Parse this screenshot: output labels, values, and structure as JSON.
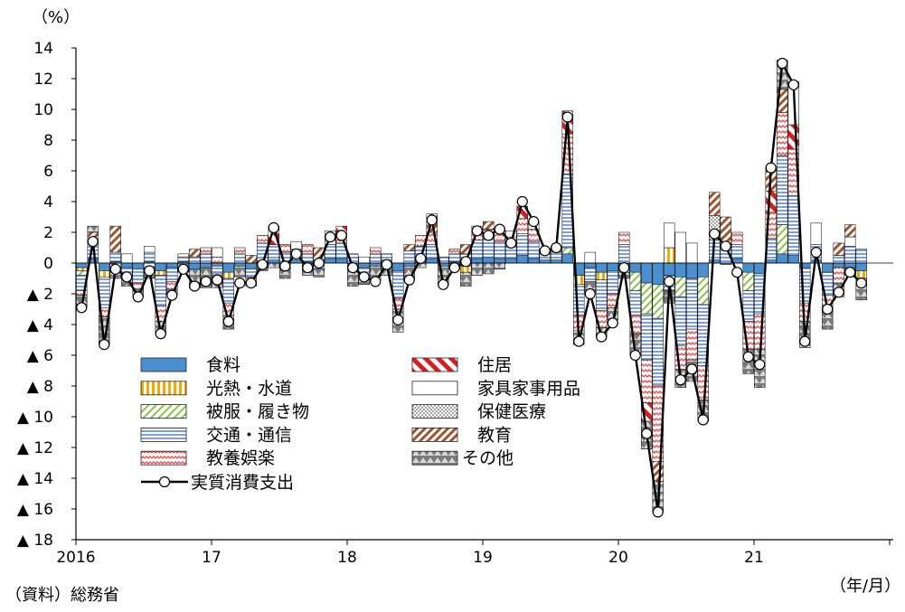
{
  "chart_data": {
    "type": "bar",
    "subtype": "stacked-bar-with-line",
    "y_unit": "（%）",
    "x_unit": "（年/月）",
    "source": "（資料）総務省",
    "ylim": [
      -18,
      14
    ],
    "y_ticks": [
      {
        "v": 14,
        "label": "14"
      },
      {
        "v": 12,
        "label": "12"
      },
      {
        "v": 10,
        "label": "10"
      },
      {
        "v": 8,
        "label": "8"
      },
      {
        "v": 6,
        "label": "6"
      },
      {
        "v": 4,
        "label": "4"
      },
      {
        "v": 2,
        "label": "2"
      },
      {
        "v": 0,
        "label": "0"
      },
      {
        "v": -2,
        "label": "▲ 2"
      },
      {
        "v": -4,
        "label": "▲ 4"
      },
      {
        "v": -6,
        "label": "▲ 6"
      },
      {
        "v": -8,
        "label": "▲ 8"
      },
      {
        "v": -10,
        "label": "▲ 10"
      },
      {
        "v": -12,
        "label": "▲ 12"
      },
      {
        "v": -14,
        "label": "▲ 14"
      },
      {
        "v": -16,
        "label": "▲ 16"
      },
      {
        "v": -18,
        "label": "▲ 18"
      }
    ],
    "x_ticks": [
      {
        "index": 0,
        "label": "2016"
      },
      {
        "index": 12,
        "label": "17"
      },
      {
        "index": 24,
        "label": "18"
      },
      {
        "index": 36,
        "label": "19"
      },
      {
        "index": 48,
        "label": "20"
      },
      {
        "index": 60,
        "label": "21"
      }
    ],
    "months_count": 71,
    "grid": false,
    "legend_position": "bottom-left",
    "series": [
      {
        "name": "食料",
        "pattern": "food",
        "color": "#4a90d0"
      },
      {
        "name": "住居",
        "pattern": "housing",
        "color": "#d62020"
      },
      {
        "name": "光熱・水道",
        "pattern": "utility",
        "color": "#f2a900"
      },
      {
        "name": "家具家事用品",
        "pattern": "furniture",
        "color": "#ffffff"
      },
      {
        "name": "被服・履き物",
        "pattern": "clothing",
        "color": "#9ccc65"
      },
      {
        "name": "保健医療",
        "pattern": "health",
        "color": "#999999"
      },
      {
        "name": "交通・通信",
        "pattern": "transport",
        "color": "#6f8fc8"
      },
      {
        "name": "教育",
        "pattern": "education",
        "color": "#a0522d"
      },
      {
        "name": "教養娯楽",
        "pattern": "recreation",
        "color": "#f05050"
      },
      {
        "name": "その他",
        "pattern": "other",
        "color": "#7a7a7a"
      }
    ],
    "line_series": {
      "name": "実質消費支出",
      "values": [
        -2.9,
        1.4,
        -5.3,
        -0.4,
        -0.9,
        -2.2,
        -0.5,
        -4.6,
        -2.1,
        -0.4,
        -1.5,
        -1.2,
        -1.1,
        -3.8,
        -1.3,
        -1.3,
        -0.1,
        2.3,
        -0.2,
        0.6,
        -0.3,
        0.0,
        1.7,
        1.8,
        -0.3,
        -0.9,
        -1.2,
        -0.1,
        -3.7,
        -1.1,
        0.3,
        2.8,
        -1.4,
        -0.3,
        0.1,
        2.1,
        1.8,
        2.2,
        1.3,
        4.0,
        2.7,
        0.8,
        1.0,
        9.5,
        -5.1,
        -2.0,
        -4.8,
        -3.9,
        -0.3,
        -6.0,
        -11.1,
        -16.2,
        -1.2,
        -7.6,
        -6.9,
        -10.2,
        1.9,
        1.1,
        -0.6,
        -6.1,
        -6.6,
        6.2,
        13.0,
        11.6,
        -5.1,
        0.7,
        -3.0,
        -1.9,
        -0.6,
        -1.3,
        null
      ]
    },
    "stack_values": [
      {
        "food": -0.3,
        "utility": -0.2,
        "clothing": -0.3,
        "transport": -1.0,
        "recreation": -0.3,
        "other": -0.8
      },
      {
        "food": 0.3,
        "transport": 0.9,
        "recreation": 0.2,
        "other": 0.4,
        "education": 0.6
      },
      {
        "food": -0.5,
        "utility": -0.4,
        "transport": -2.0,
        "recreation": -0.6,
        "other": -1.8
      },
      {
        "food": 0.1,
        "transport": 0.6,
        "housing": -0.6,
        "education": 1.7,
        "other": -0.4
      },
      {
        "food": -0.3,
        "transport": -0.5,
        "furniture": 0.6,
        "other": -0.7
      },
      {
        "food": -0.4,
        "transport": -0.9,
        "recreation": -0.4,
        "other": -0.5
      },
      {
        "food": 0.1,
        "transport": 0.6,
        "furniture": 0.4,
        "recreation": -0.6,
        "other": -0.4
      },
      {
        "food": -0.5,
        "utility": -0.3,
        "transport": -2.0,
        "recreation": -1.0,
        "other": -0.8
      },
      {
        "food": -0.3,
        "transport": -0.9,
        "recreation": -0.5,
        "other": -0.4
      },
      {
        "food": 0.1,
        "transport": 0.3,
        "furniture": 0.2,
        "other": -0.6
      },
      {
        "food": -0.4,
        "transport": 0.4,
        "education": 0.5,
        "other": -1.2
      },
      {
        "food": -0.3,
        "transport": 0.6,
        "recreation": 0.4,
        "other": -1.3
      },
      {
        "food": -0.2,
        "transport": -0.5,
        "recreation": 0.4,
        "furniture": 0.6,
        "other": -0.9
      },
      {
        "food": -0.6,
        "utility": -0.4,
        "transport": -1.6,
        "recreation": -0.8,
        "other": -0.9
      },
      {
        "food": -0.2,
        "transport": 0.6,
        "recreation": 0.4,
        "other": -0.7
      },
      {
        "food": -0.4,
        "transport": -0.5,
        "recreation": -0.6,
        "education": 0.5
      },
      {
        "food": 0.1,
        "transport": 1.2,
        "recreation": 0.5,
        "other": -0.5
      },
      {
        "food": 0.2,
        "transport": 1.0,
        "housing": 1.2,
        "other": -0.3
      },
      {
        "food": -0.2,
        "transport": 0.7,
        "recreation": 0.5,
        "other": -0.8
      },
      {
        "food": 0.2,
        "transport": 0.7,
        "furniture": 0.5
      },
      {
        "food": 0.1,
        "transport": 0.5,
        "recreation": 0.6,
        "other": -0.8
      },
      {
        "food": 0.2,
        "transport": -0.4,
        "education": 0.8,
        "other": -0.5
      },
      {
        "food": 0.3,
        "transport": 0.9,
        "recreation": 0.9
      },
      {
        "food": 0.3,
        "transport": 1.0,
        "recreation": 0.5,
        "housing": 0.6
      },
      {
        "food": -0.2,
        "transport": 0.6,
        "other": -1.3
      },
      {
        "food": -0.3,
        "transport": -0.7,
        "furniture": 0.4,
        "other": -0.4
      },
      {
        "food": -0.2,
        "transport": 0.6,
        "recreation": 0.4,
        "other": -0.9
      },
      {
        "food": 0.2,
        "transport": 0.4,
        "other": -0.8
      },
      {
        "food": -0.5,
        "transport": -1.8,
        "recreation": -0.7,
        "other": -1.5
      },
      {
        "food": -0.2,
        "transport": 0.8,
        "education": 0.4,
        "other": -0.9
      },
      {
        "food": 0.1,
        "transport": 1.0,
        "recreation": 0.7,
        "other": -0.3
      },
      {
        "food": 0.3,
        "transport": 0.9,
        "recreation": 0.8,
        "education": 1.2
      },
      {
        "food": -0.2,
        "transport": 0.4,
        "other": -1.2
      },
      {
        "food": 0.1,
        "transport": 0.5,
        "recreation": 0.3,
        "other": -0.4
      },
      {
        "food": -0.2,
        "utility": -0.4,
        "transport": 0.6,
        "education": 0.6,
        "other": -0.9
      },
      {
        "food": 0.3,
        "transport": 1.2,
        "recreation": 0.9,
        "other": -0.8
      },
      {
        "food": 0.4,
        "transport": 1.2,
        "recreation": 0.6,
        "education": 0.5,
        "other": -0.7
      },
      {
        "food": 0.3,
        "transport": 1.1,
        "recreation": 0.8,
        "other": -0.4
      },
      {
        "food": 0.3,
        "transport": 0.8,
        "recreation": 0.6,
        "furniture": 0.4
      },
      {
        "food": 0.5,
        "transport": 1.4,
        "recreation": 1.0,
        "housing": 0.8
      },
      {
        "food": 0.3,
        "transport": 1.1,
        "recreation": 0.8,
        "furniture": 0.5
      },
      {
        "food": 0.2,
        "transport": 0.4,
        "recreation": 0.3
      },
      {
        "food": 0.2,
        "transport": 0.5,
        "recreation": 0.4
      },
      {
        "food": 0.6,
        "transport": 4.8,
        "recreation": 2.6,
        "housing": 1.5,
        "clothing": 0.4
      },
      {
        "food": -0.8,
        "utility": -0.6,
        "transport": -2.0,
        "recreation": -1.0,
        "other": -0.9
      },
      {
        "food": -0.3,
        "transport": -0.9,
        "furniture": 0.7,
        "other": -0.7
      },
      {
        "food": -0.6,
        "utility": -0.5,
        "transport": -2.0,
        "recreation": -1.1,
        "other": -0.6
      },
      {
        "food": -0.5,
        "transport": -1.5,
        "recreation": -0.9,
        "other": -0.8
      },
      {
        "food": -0.3,
        "utility": -0.3,
        "transport": 1.2,
        "recreation": 0.8,
        "other": -0.4
      },
      {
        "food": -0.6,
        "clothing": -1.2,
        "transport": -1.6,
        "recreation": -1.2,
        "other": -1.4
      },
      {
        "food": -1.3,
        "clothing": -2.0,
        "transport": -3.0,
        "recreation": -2.8,
        "housing": -1.2,
        "other": -1.8
      },
      {
        "food": -1.4,
        "clothing": -2.2,
        "transport": -4.4,
        "recreation": -4.9,
        "education": -1.3,
        "other": -2.0
      },
      {
        "food": -0.8,
        "utility": 1.0,
        "transport": -1.0,
        "furniture": 1.6,
        "other": -0.8
      },
      {
        "food": -0.9,
        "clothing": -1.3,
        "transport": -3.2,
        "recreation": -1.5,
        "furniture": 2.0,
        "other": -1.2
      },
      {
        "food": -1.0,
        "transport": -3.3,
        "recreation": -2.0,
        "furniture": 1.3,
        "other": -1.4
      },
      {
        "food": -0.9,
        "clothing": -1.8,
        "transport": -4.0,
        "recreation": -2.2,
        "other": -1.4
      },
      {
        "food": 0.2,
        "transport": 1.3,
        "health": 1.6,
        "education": 1.5
      },
      {
        "food": -0.1,
        "transport": 1.0,
        "education": 2.0
      },
      {
        "food": 0.3,
        "transport": 0.9,
        "recreation": 0.8
      },
      {
        "food": -0.6,
        "clothing": -1.2,
        "transport": -2.0,
        "recreation": -1.8,
        "other": -1.6
      },
      {
        "food": -0.7,
        "transport": -2.6,
        "recreation": -2.3,
        "other": -2.5
      },
      {
        "food": 0.2,
        "transport": 1.4,
        "housing": 1.4,
        "recreation": 1.7,
        "education": 1.5
      },
      {
        "food": 0.6,
        "clothing": 1.9,
        "transport": 4.5,
        "recreation": 2.8,
        "education": 1.5,
        "other": 1.9
      },
      {
        "food": 0.5,
        "housing": 1.6,
        "transport": 3.9,
        "recreation": 3.0,
        "furniture": 2.8
      },
      {
        "food": -0.3,
        "transport": -2.3,
        "recreation": -1.2,
        "other": -1.7
      },
      {
        "food": 0.2,
        "transport": 1.0,
        "furniture": 1.4
      },
      {
        "food": -0.6,
        "transport": -1.5,
        "recreation": -1.0,
        "other": -1.2
      },
      {
        "food": -0.3,
        "transport": 0.5,
        "recreation": -1.0,
        "other": -0.9,
        "education": 0.8
      },
      {
        "food": -0.3,
        "transport": 1.1,
        "furniture": 0.6,
        "education": 0.8,
        "other": -0.5
      },
      {
        "food": -0.5,
        "utility": -0.5,
        "transport": 0.9,
        "other": -1.4
      },
      {}
    ]
  }
}
